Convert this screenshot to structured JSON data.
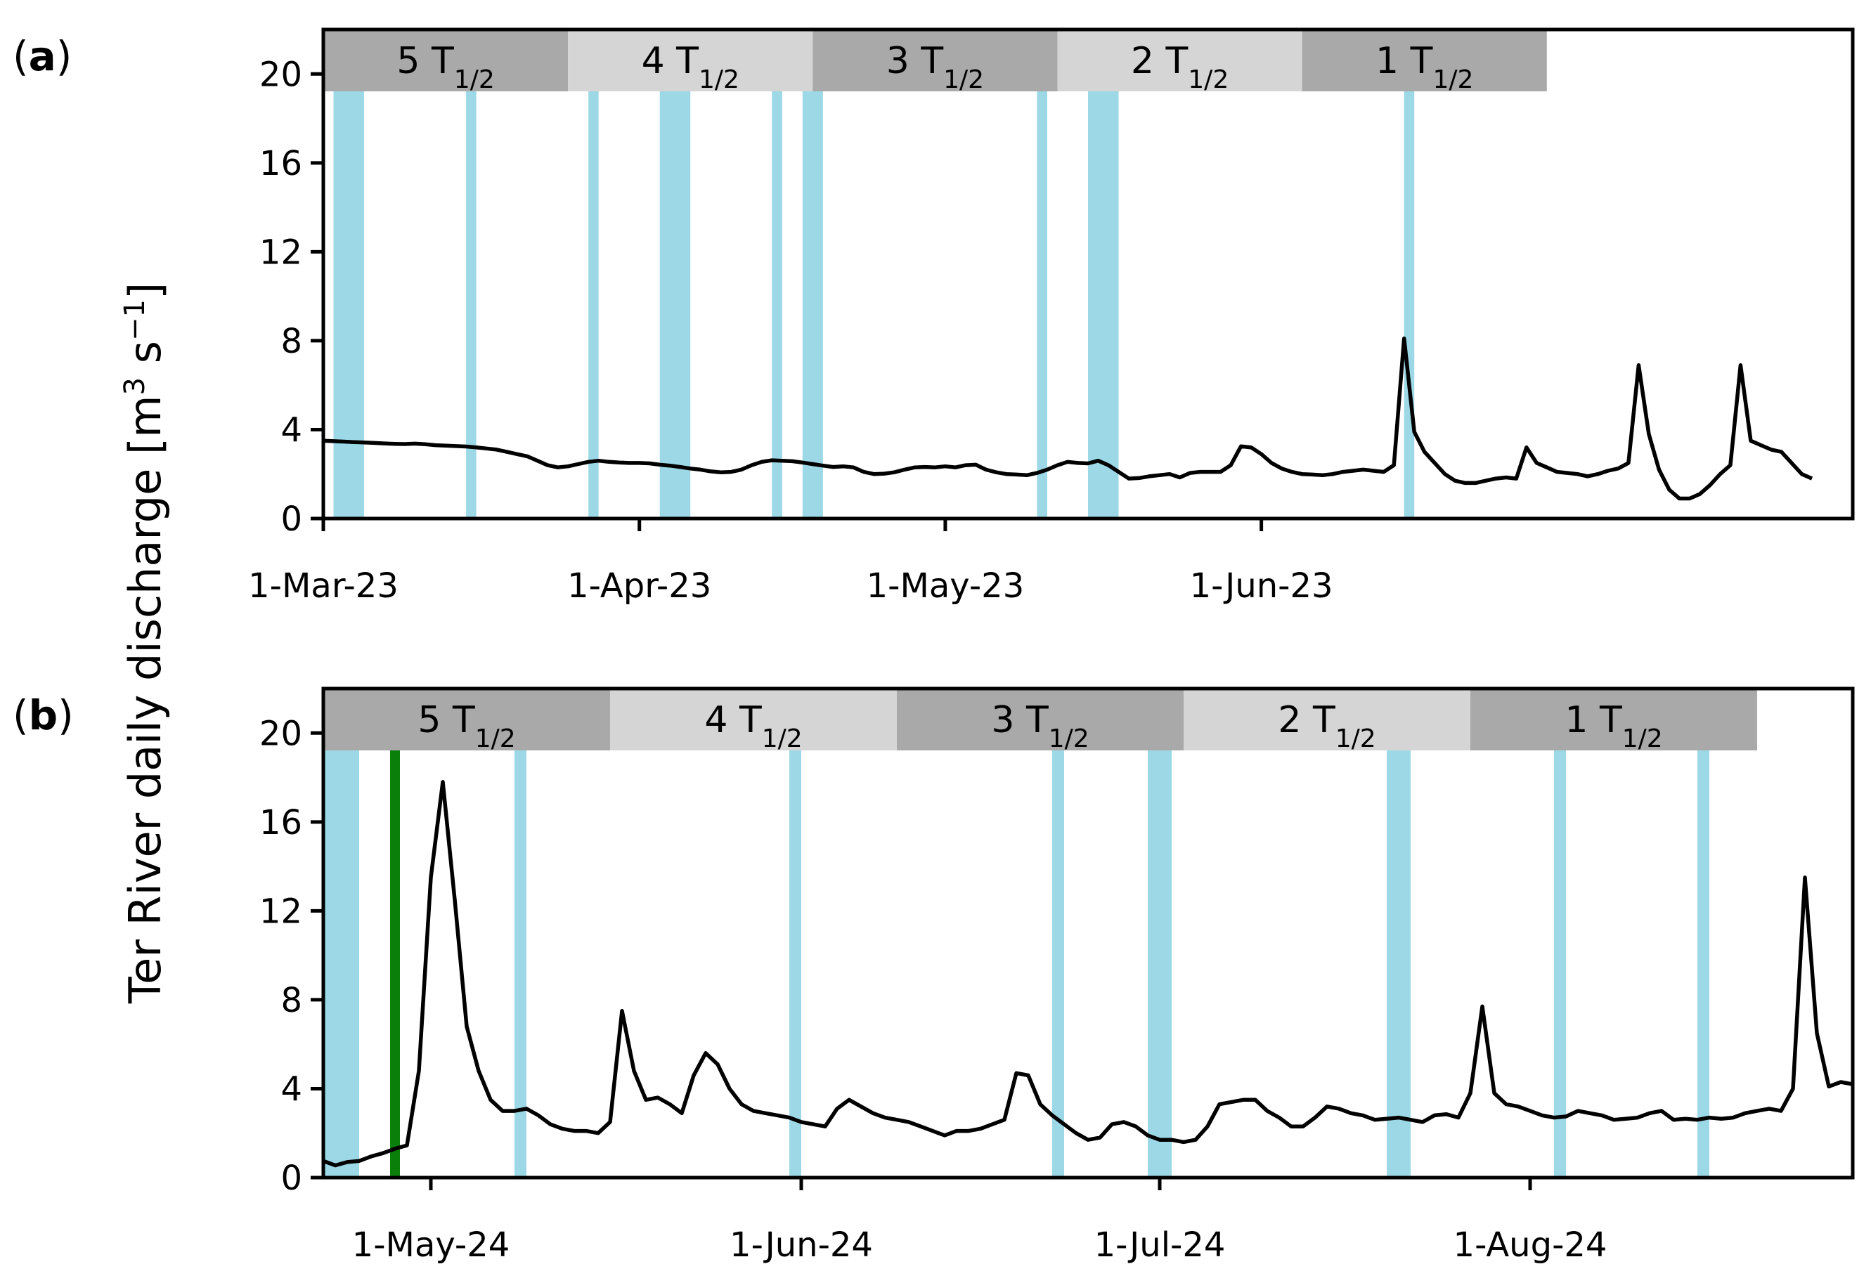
{
  "colors": {
    "event_band": "#9cd8e6",
    "band_dark": "#a9a9a9",
    "band_light": "#d5d5d5",
    "discharge_line": "#000000",
    "green_marker": "#0a7f0a"
  },
  "ylabel": "Ter River daily discharge [m",
  "ylabel_units": {
    "sup3": "3",
    "s": " s",
    "supneg1": "−1",
    "close": "]"
  },
  "chart_data": [
    {
      "type": "line",
      "panel_label": "a",
      "x_axis": "date",
      "xlim": [
        "2023-03-01",
        "2023-07-29"
      ],
      "ylim": [
        0,
        22
      ],
      "yticks": [
        0,
        4,
        8,
        12,
        16,
        20
      ],
      "xticks": [
        {
          "date": "2023-03-01",
          "label": "1-Mar-23"
        },
        {
          "date": "2023-04-01",
          "label": "1-Apr-23"
        },
        {
          "date": "2023-05-01",
          "label": "1-May-23"
        },
        {
          "date": "2023-06-01",
          "label": "1-Jun-23"
        }
      ],
      "bands": [
        {
          "start": "2023-03-01",
          "end": "2023-03-25",
          "base": "5",
          "sub": "1/2",
          "shade": "dark"
        },
        {
          "start": "2023-03-25",
          "end": "2023-04-18",
          "base": "4",
          "sub": "1/2",
          "shade": "light"
        },
        {
          "start": "2023-04-18",
          "end": "2023-05-12",
          "base": "3",
          "sub": "1/2",
          "shade": "dark"
        },
        {
          "start": "2023-05-12",
          "end": "2023-06-05",
          "base": "2",
          "sub": "1/2",
          "shade": "light"
        },
        {
          "start": "2023-06-05",
          "end": "2023-06-29",
          "base": "1",
          "sub": "1/2",
          "shade": "dark"
        }
      ],
      "events": [
        {
          "start": "2023-03-02",
          "end": "2023-03-05"
        },
        {
          "start": "2023-03-15",
          "end": "2023-03-16"
        },
        {
          "start": "2023-03-27",
          "end": "2023-03-28"
        },
        {
          "start": "2023-04-03",
          "end": "2023-04-06"
        },
        {
          "start": "2023-04-14",
          "end": "2023-04-15"
        },
        {
          "start": "2023-04-17",
          "end": "2023-04-19"
        },
        {
          "start": "2023-05-10",
          "end": "2023-05-11"
        },
        {
          "start": "2023-05-15",
          "end": "2023-05-18"
        },
        {
          "start": "2023-06-15",
          "end": "2023-06-16"
        }
      ],
      "markers": [],
      "series": [
        {
          "start": "2023-03-01",
          "values": [
            3.5,
            3.48,
            3.46,
            3.44,
            3.42,
            3.4,
            3.38,
            3.36,
            3.35,
            3.37,
            3.34,
            3.3,
            3.28,
            3.26,
            3.24,
            3.2,
            3.15,
            3.1,
            3.0,
            2.9,
            2.8,
            2.6,
            2.4,
            2.3,
            2.35,
            2.45,
            2.55,
            2.6,
            2.55,
            2.52,
            2.5,
            2.5,
            2.48,
            2.42,
            2.38,
            2.32,
            2.25,
            2.2,
            2.12,
            2.08,
            2.1,
            2.2,
            2.4,
            2.55,
            2.62,
            2.6,
            2.58,
            2.52,
            2.45,
            2.38,
            2.32,
            2.35,
            2.3,
            2.1,
            2.0,
            2.02,
            2.08,
            2.2,
            2.3,
            2.32,
            2.3,
            2.35,
            2.3,
            2.4,
            2.42,
            2.2,
            2.08,
            2.0,
            1.98,
            1.95,
            2.05,
            2.2,
            2.4,
            2.55,
            2.5,
            2.48,
            2.6,
            2.4,
            2.1,
            1.8,
            1.82,
            1.9,
            1.95,
            2.0,
            1.85,
            2.05,
            2.1,
            2.1,
            2.1,
            2.4,
            3.25,
            3.2,
            2.9,
            2.5,
            2.25,
            2.1,
            2.0,
            1.98,
            1.95,
            2.0,
            2.1,
            2.15,
            2.2,
            2.15,
            2.1,
            2.4,
            8.1,
            3.9,
            3.0,
            2.5,
            2.0,
            1.7,
            1.6,
            1.6,
            1.7,
            1.8,
            1.85,
            1.8,
            3.2,
            2.5,
            2.3,
            2.1,
            2.05,
            2.0,
            1.9,
            2.0,
            2.15,
            2.25,
            2.5,
            6.9,
            3.8,
            2.2,
            1.3,
            0.9,
            0.9,
            1.1,
            1.5,
            2.0,
            2.4,
            6.9,
            3.5,
            3.3,
            3.1,
            3.0,
            2.5,
            2.0,
            1.8
          ]
        }
      ]
    },
    {
      "type": "line",
      "panel_label": "b",
      "x_axis": "date",
      "xlim": [
        "2024-04-22",
        "2024-08-28"
      ],
      "ylim": [
        0,
        22
      ],
      "yticks": [
        0,
        4,
        8,
        12,
        16,
        20
      ],
      "xticks": [
        {
          "date": "2024-05-01",
          "label": "1-May-24"
        },
        {
          "date": "2024-06-01",
          "label": "1-Jun-24"
        },
        {
          "date": "2024-07-01",
          "label": "1-Jul-24"
        },
        {
          "date": "2024-08-01",
          "label": "1-Aug-24"
        }
      ],
      "bands": [
        {
          "start": "2024-04-22",
          "end": "2024-05-16",
          "base": "5",
          "sub": "1/2",
          "shade": "dark"
        },
        {
          "start": "2024-05-16",
          "end": "2024-06-09",
          "base": "4",
          "sub": "1/2",
          "shade": "light"
        },
        {
          "start": "2024-06-09",
          "end": "2024-07-03",
          "base": "3",
          "sub": "1/2",
          "shade": "dark"
        },
        {
          "start": "2024-07-03",
          "end": "2024-07-27",
          "base": "2",
          "sub": "1/2",
          "shade": "light"
        },
        {
          "start": "2024-07-27",
          "end": "2024-08-20",
          "base": "1",
          "sub": "1/2",
          "shade": "dark"
        }
      ],
      "events": [
        {
          "start": "2024-04-22",
          "end": "2024-04-25"
        },
        {
          "start": "2024-05-08",
          "end": "2024-05-09"
        },
        {
          "start": "2024-05-31",
          "end": "2024-06-01"
        },
        {
          "start": "2024-06-22",
          "end": "2024-06-23"
        },
        {
          "start": "2024-06-30",
          "end": "2024-07-02"
        },
        {
          "start": "2024-07-20",
          "end": "2024-07-22"
        },
        {
          "start": "2024-08-03",
          "end": "2024-08-04"
        },
        {
          "start": "2024-08-15",
          "end": "2024-08-16"
        }
      ],
      "markers": [
        {
          "date": "2024-04-28"
        }
      ],
      "series": [
        {
          "start": "2024-04-22",
          "values": [
            0.75,
            0.55,
            0.7,
            0.75,
            0.95,
            1.1,
            1.3,
            1.45,
            4.8,
            13.5,
            17.8,
            12.5,
            6.8,
            4.8,
            3.5,
            3.0,
            3.0,
            3.1,
            2.8,
            2.4,
            2.2,
            2.1,
            2.1,
            2.0,
            2.5,
            7.5,
            4.8,
            3.5,
            3.6,
            3.3,
            2.9,
            4.6,
            5.6,
            5.1,
            4.0,
            3.3,
            3.0,
            2.9,
            2.8,
            2.7,
            2.5,
            2.4,
            2.3,
            3.1,
            3.5,
            3.2,
            2.9,
            2.7,
            2.6,
            2.5,
            2.3,
            2.1,
            1.9,
            2.1,
            2.1,
            2.2,
            2.4,
            2.6,
            4.7,
            4.6,
            3.3,
            2.8,
            2.4,
            2.0,
            1.7,
            1.8,
            2.4,
            2.5,
            2.3,
            1.9,
            1.7,
            1.7,
            1.6,
            1.7,
            2.3,
            3.3,
            3.4,
            3.5,
            3.5,
            3.0,
            2.7,
            2.3,
            2.3,
            2.7,
            3.2,
            3.1,
            2.9,
            2.8,
            2.6,
            2.65,
            2.7,
            2.6,
            2.5,
            2.8,
            2.85,
            2.7,
            3.8,
            7.7,
            3.8,
            3.3,
            3.2,
            3.0,
            2.8,
            2.7,
            2.75,
            3.0,
            2.9,
            2.8,
            2.6,
            2.65,
            2.7,
            2.9,
            3.0,
            2.6,
            2.65,
            2.6,
            2.7,
            2.65,
            2.7,
            2.9,
            3.0,
            3.1,
            3.0,
            4.0,
            13.5,
            6.5,
            4.1,
            4.3,
            4.2,
            3.5
          ]
        }
      ]
    }
  ]
}
